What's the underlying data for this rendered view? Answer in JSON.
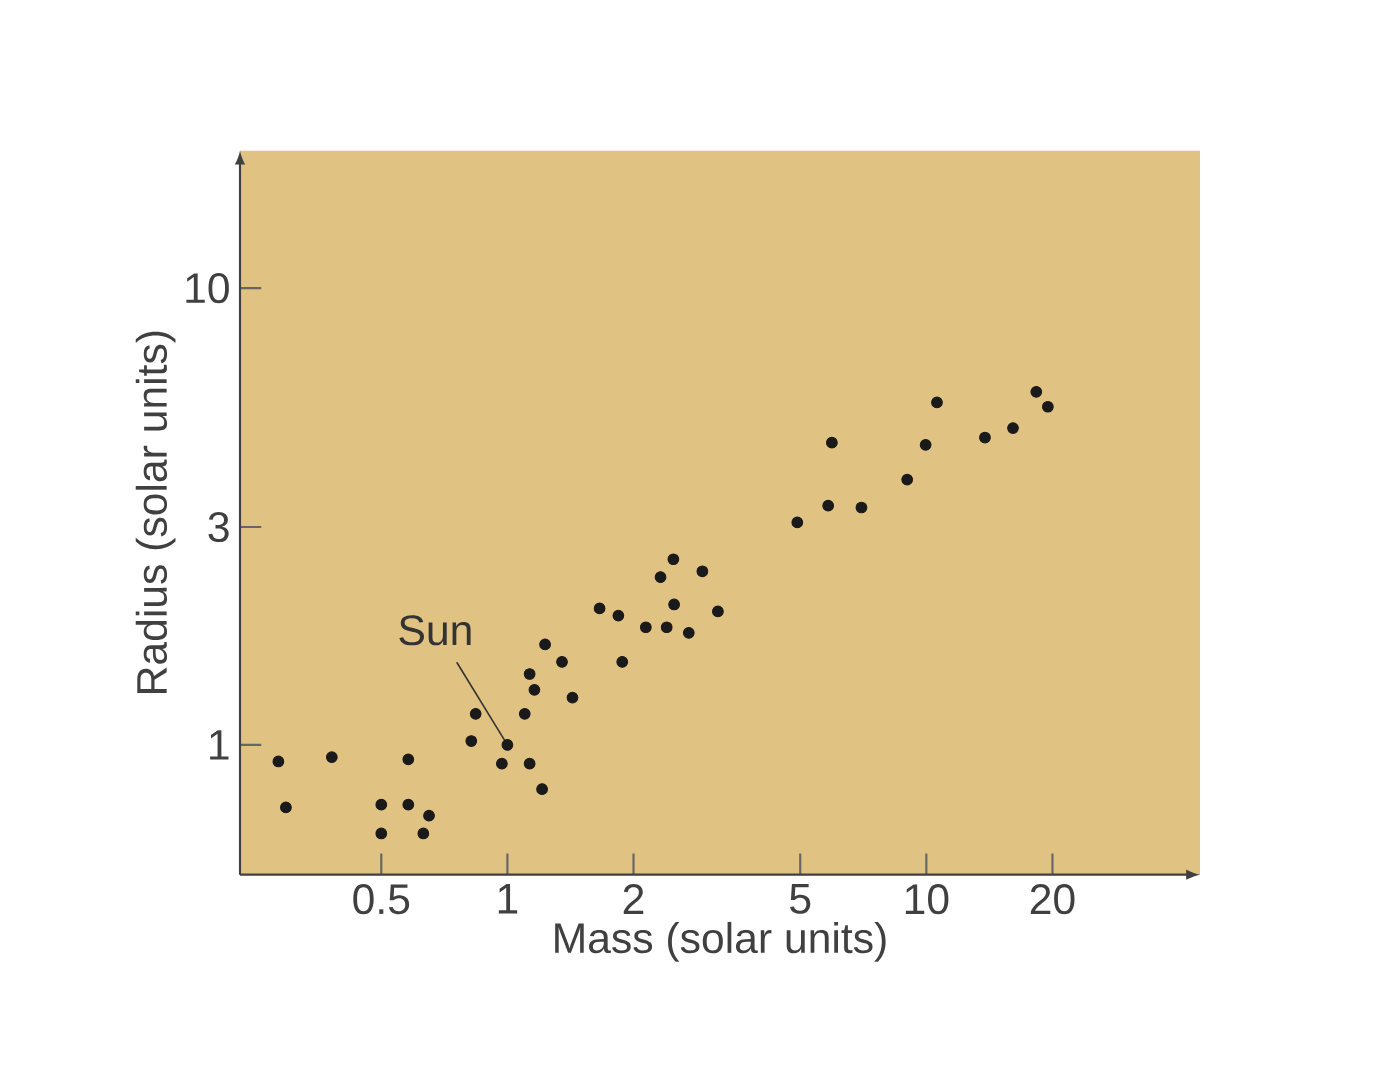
{
  "chart_data": {
    "type": "scatter",
    "xlabel": "Mass (solar units)",
    "ylabel": "Radius (solar units)",
    "log": "xy",
    "color": "#1a1a1a",
    "xlim": [
      0.23,
      45
    ],
    "ylim": [
      0.52,
      20
    ],
    "xticks": [
      0.5,
      1,
      2,
      5,
      10,
      20
    ],
    "yticks": [
      1,
      3,
      10
    ],
    "x": [
      0.284,
      0.296,
      0.381,
      0.5,
      0.5,
      0.58,
      0.58,
      0.65,
      0.63,
      0.82,
      0.84,
      0.97,
      1.0,
      1.1,
      1.13,
      1.16,
      1.13,
      1.21,
      1.23,
      1.35,
      1.43,
      1.66,
      1.84,
      1.88,
      2.14,
      2.4,
      2.32,
      2.49,
      2.5,
      2.71,
      2.92,
      3.18,
      4.92,
      5.83,
      5.95,
      7.0,
      9.0,
      9.96,
      10.6,
      13.8,
      16.1,
      18.3,
      19.5
    ],
    "values": [
      0.92,
      0.73,
      0.94,
      0.74,
      0.64,
      0.93,
      0.74,
      0.7,
      0.64,
      1.02,
      1.17,
      0.91,
      1.0,
      1.17,
      1.43,
      1.32,
      0.91,
      0.8,
      1.66,
      1.52,
      1.27,
      1.99,
      1.92,
      1.52,
      1.81,
      1.81,
      2.33,
      2.55,
      2.03,
      1.76,
      2.4,
      1.96,
      3.07,
      3.34,
      4.59,
      3.31,
      3.81,
      4.54,
      5.62,
      4.71,
      4.94,
      5.93,
      5.5
    ],
    "annotations": [
      {
        "text": "Sun",
        "x": 1,
        "y": 1
      }
    ]
  }
}
